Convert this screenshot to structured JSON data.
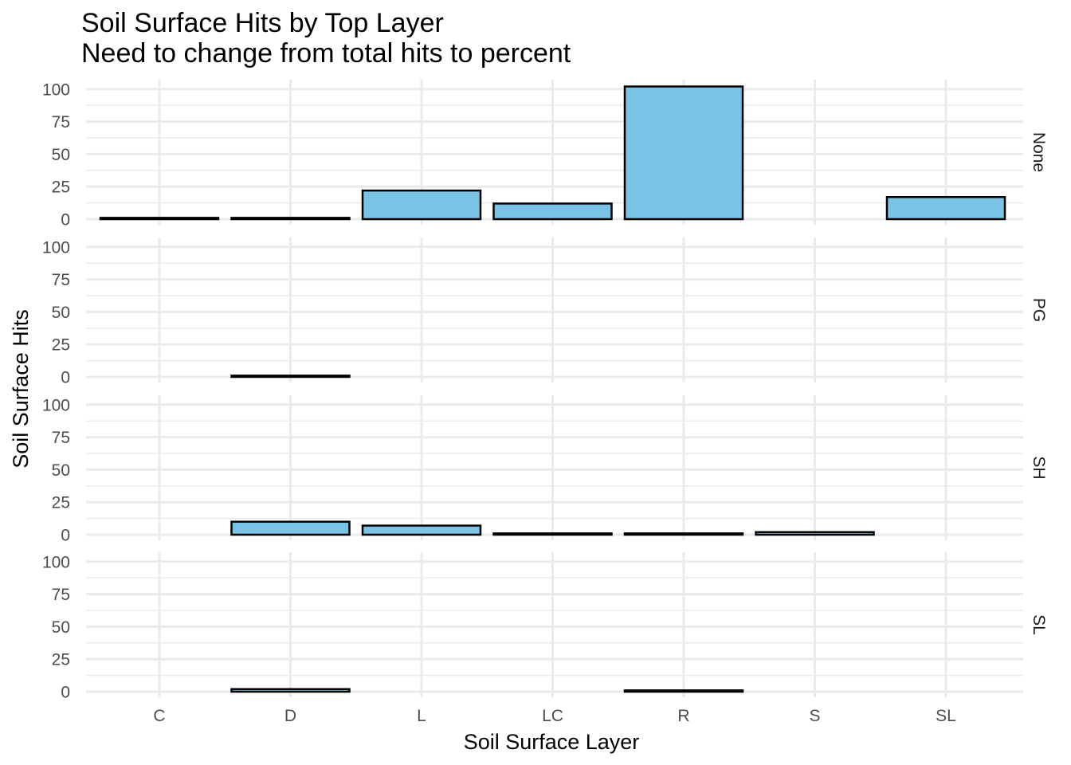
{
  "chart_data": {
    "type": "bar",
    "title": "Soil Surface Hits by Top Layer",
    "subtitle": "Need to change from total hits to percent",
    "xlabel": "Soil Surface Layer",
    "ylabel": "Soil Surface Hits",
    "categories": [
      "C",
      "D",
      "L",
      "LC",
      "R",
      "S",
      "SL"
    ],
    "ylim": [
      0,
      100
    ],
    "yticks": [
      "0",
      "25",
      "50",
      "75",
      "100"
    ],
    "bar_color": "#7ac3e4",
    "bar_outline": "#000000",
    "grid": true,
    "facets": [
      {
        "label": "None",
        "values": [
          1,
          1,
          22,
          12,
          102,
          null,
          17
        ]
      },
      {
        "label": "PG",
        "values": [
          null,
          1,
          null,
          null,
          null,
          null,
          null
        ]
      },
      {
        "label": "SH",
        "values": [
          null,
          10,
          7,
          1,
          1,
          2,
          null
        ]
      },
      {
        "label": "SL",
        "values": [
          null,
          2,
          null,
          null,
          1,
          null,
          null
        ]
      }
    ]
  }
}
